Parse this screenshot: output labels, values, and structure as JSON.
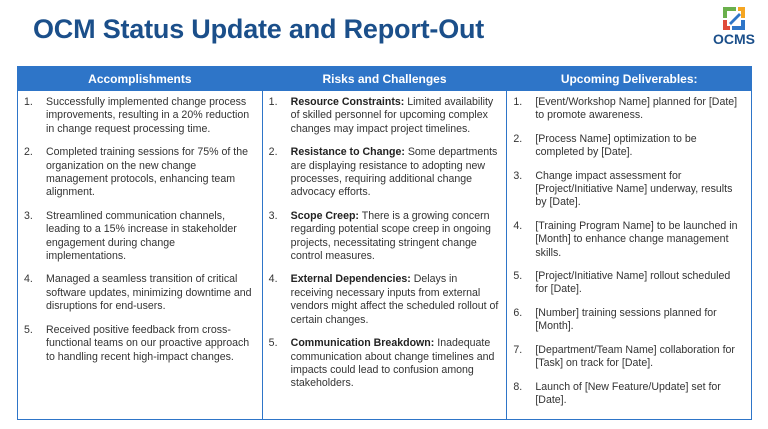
{
  "header": {
    "title": "OCM Status Update and Report-Out",
    "logo": "OCMS"
  },
  "table": {
    "columns": [
      {
        "header": "Accomplishments",
        "items": [
          {
            "num": "1.",
            "text": "Successfully implemented change process improvements, resulting in a 20% reduction in change request processing time."
          },
          {
            "num": "2.",
            "text": "Completed training sessions for 75% of the organization on the new change management protocols, enhancing team alignment."
          },
          {
            "num": "3.",
            "text": "Streamlined communication channels, leading to a 15% increase in stakeholder engagement during change implementations."
          },
          {
            "num": "4.",
            "text": "Managed a seamless transition of critical software updates, minimizing downtime and disruptions for end-users."
          },
          {
            "num": "5.",
            "text": "Received positive feedback from cross-functional teams on our proactive approach to handling recent high-impact changes."
          }
        ]
      },
      {
        "header": "Risks and Challenges",
        "items": [
          {
            "num": "1.",
            "label": "Resource Constraints:",
            "text": "Limited availability of skilled personnel for upcoming complex changes may impact project timelines."
          },
          {
            "num": "2.",
            "label": "Resistance to Change:",
            "text": "Some departments are displaying resistance to adopting new processes, requiring additional change advocacy efforts."
          },
          {
            "num": "3.",
            "label": "Scope Creep:",
            "text": "There is a growing concern regarding potential scope creep in ongoing projects, necessitating stringent change control measures."
          },
          {
            "num": "4.",
            "label": "External Dependencies:",
            "text": "Delays in receiving necessary inputs from external vendors might affect the scheduled rollout of certain changes."
          },
          {
            "num": "5.",
            "label": "Communication Breakdown:",
            "text": "Inadequate communication about change timelines and impacts could lead to confusion among stakeholders."
          }
        ]
      },
      {
        "header": "Upcoming Deliverables:",
        "items": [
          {
            "num": "1.",
            "text": "[Event/Workshop Name] planned for [Date] to promote awareness."
          },
          {
            "num": "2.",
            "text": "[Process Name] optimization to be completed by [Date]."
          },
          {
            "num": "3.",
            "text": "Change impact assessment for [Project/Initiative Name] underway, results by [Date]."
          },
          {
            "num": "4.",
            "text": "[Training Program Name] to be launched in [Month] to enhance change management skills."
          },
          {
            "num": "5.",
            "text": "[Project/Initiative Name] rollout scheduled for [Date]."
          },
          {
            "num": "6.",
            "text": "[Number] training sessions planned for [Month]."
          },
          {
            "num": "7.",
            "text": "[Department/Team Name] collaboration for [Task] on track for [Date]."
          },
          {
            "num": "8.",
            "text": "Launch of [New Feature/Update] set for [Date]."
          }
        ]
      }
    ]
  }
}
